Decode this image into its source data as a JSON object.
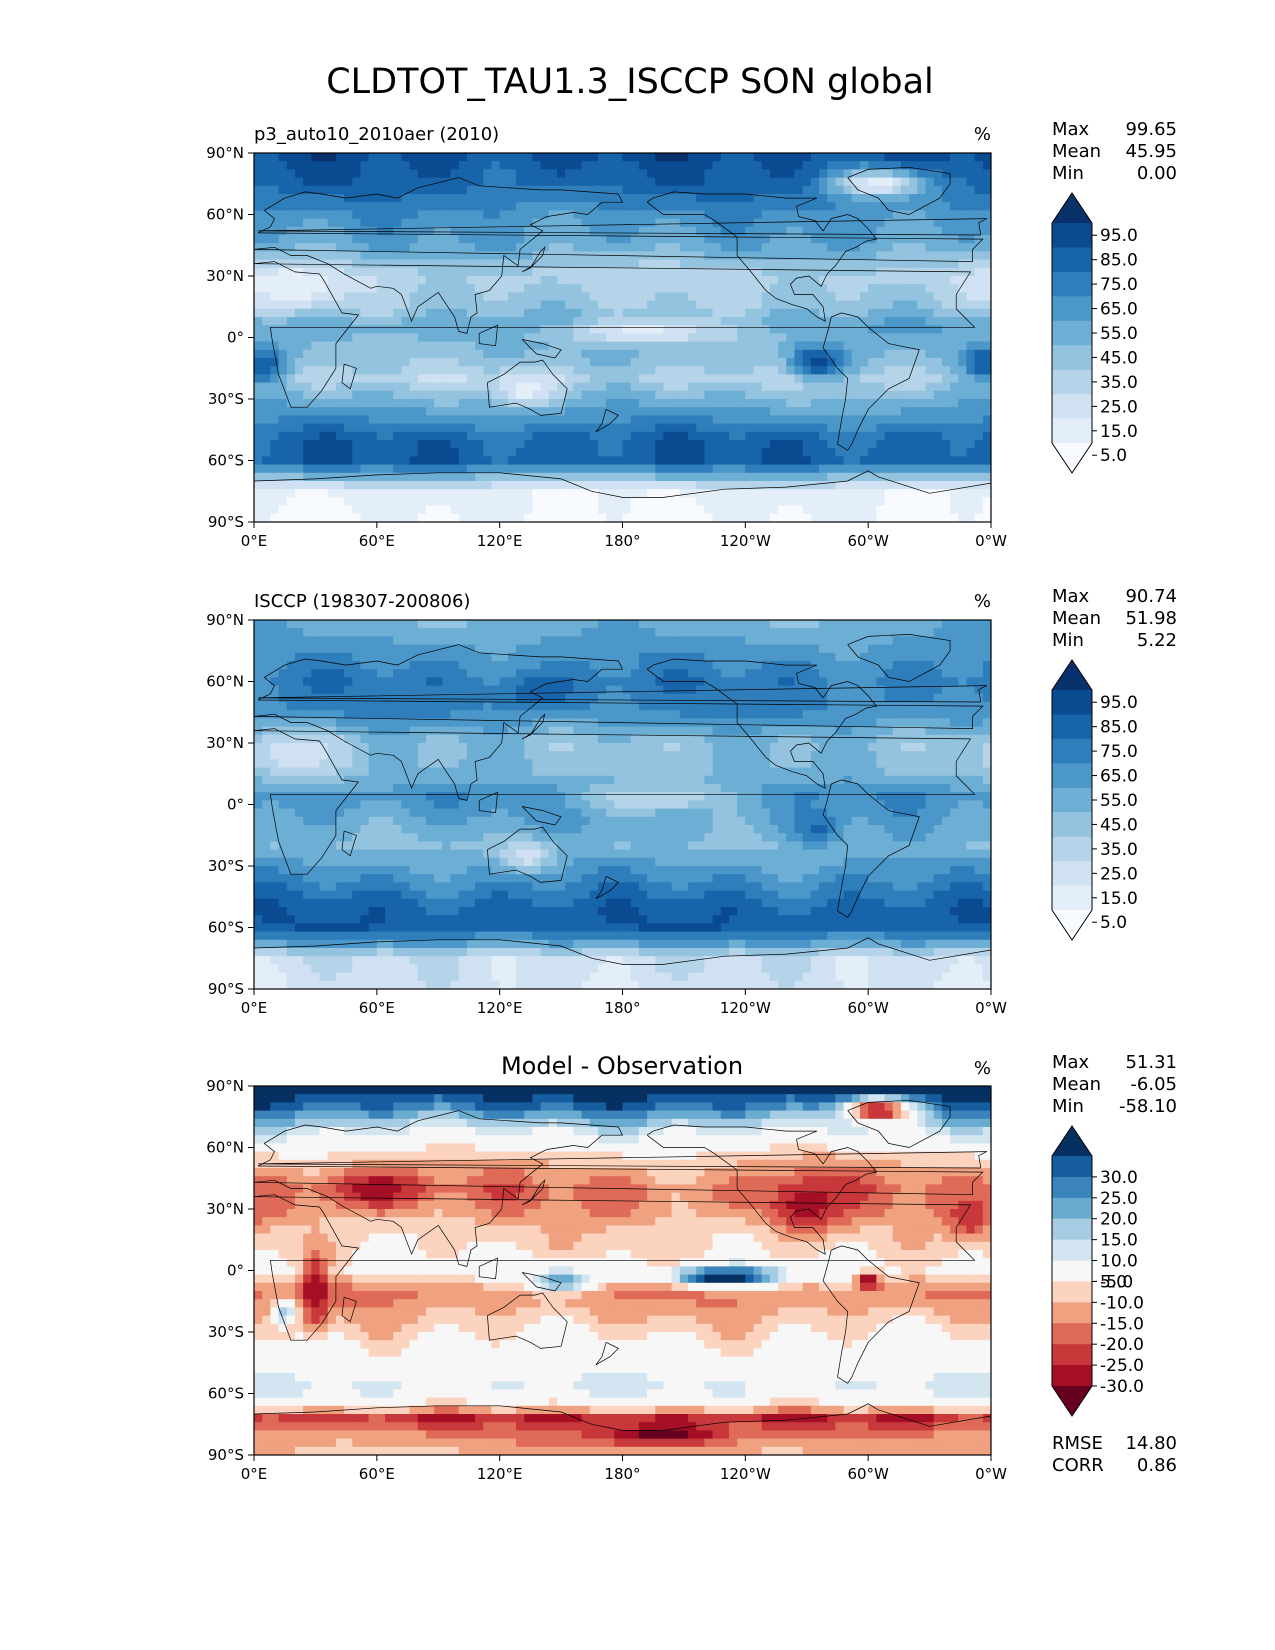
{
  "figure": {
    "title": "CLDTOT_TAU1.3_ISCCP SON global"
  },
  "chart_data": [
    {
      "type": "heatmap",
      "title": "",
      "left_title": "p3_auto10_2010aer (2010)",
      "units": "%",
      "xlabel": "",
      "ylabel": "",
      "x_ticks": [
        "0°E",
        "60°E",
        "120°E",
        "180°",
        "120°W",
        "60°W",
        "0°W"
      ],
      "y_ticks": [
        "90°N",
        "60°N",
        "30°N",
        "0°",
        "30°S",
        "60°S",
        "90°S"
      ],
      "xlim": [
        0,
        360
      ],
      "ylim": [
        -90,
        90
      ],
      "stats": [
        {
          "label": "Max",
          "value": "99.65"
        },
        {
          "label": "Mean",
          "value": "45.95"
        },
        {
          "label": "Min",
          "value": "0.00"
        }
      ],
      "colorbar": {
        "ticks": [
          "95.0",
          "85.0",
          "75.0",
          "65.0",
          "55.0",
          "45.0",
          "35.0",
          "25.0",
          "15.0",
          "5.0"
        ],
        "colors": [
          "#f7fbff",
          "#e3eef9",
          "#cfe1f2",
          "#b5d4e9",
          "#93c3df",
          "#6daed5",
          "#4b97c9",
          "#2f7ebc",
          "#1864aa",
          "#0a4a90",
          "#08306b"
        ]
      },
      "field": {
        "zonal_profile": [
          {
            "lat": 90,
            "value": 88
          },
          {
            "lat": 75,
            "value": 80
          },
          {
            "lat": 60,
            "value": 62
          },
          {
            "lat": 45,
            "value": 52
          },
          {
            "lat": 30,
            "value": 30
          },
          {
            "lat": 15,
            "value": 38
          },
          {
            "lat": 5,
            "value": 55
          },
          {
            "lat": 0,
            "value": 48
          },
          {
            "lat": -10,
            "value": 42
          },
          {
            "lat": -20,
            "value": 30
          },
          {
            "lat": -35,
            "value": 55
          },
          {
            "lat": -50,
            "value": 80
          },
          {
            "lat": -60,
            "value": 82
          },
          {
            "lat": -68,
            "value": 45
          },
          {
            "lat": -75,
            "value": 8
          },
          {
            "lat": -90,
            "value": 3
          }
        ],
        "features": [
          {
            "lon": 275,
            "lat": -12,
            "rx": 14,
            "ry": 9,
            "value": 90
          },
          {
            "lon": 5,
            "lat": -14,
            "rx": 10,
            "ry": 8,
            "value": 85
          },
          {
            "lon": 355,
            "lat": -12,
            "rx": 8,
            "ry": 8,
            "value": 85
          },
          {
            "lon": 190,
            "lat": 3,
            "rx": 45,
            "ry": 6,
            "value": 12
          },
          {
            "lon": 305,
            "lat": 75,
            "rx": 22,
            "ry": 7,
            "value": 8
          },
          {
            "lon": 20,
            "lat": 25,
            "rx": 25,
            "ry": 10,
            "value": 5
          },
          {
            "lon": 133,
            "lat": -25,
            "rx": 14,
            "ry": 8,
            "value": 8
          }
        ]
      }
    },
    {
      "type": "heatmap",
      "title": "",
      "left_title": "ISCCP (198307-200806)",
      "units": "%",
      "xlabel": "",
      "ylabel": "",
      "x_ticks": [
        "0°E",
        "60°E",
        "120°E",
        "180°",
        "120°W",
        "60°W",
        "0°W"
      ],
      "y_ticks": [
        "90°N",
        "60°N",
        "30°N",
        "0°",
        "30°S",
        "60°S",
        "90°S"
      ],
      "xlim": [
        0,
        360
      ],
      "ylim": [
        -90,
        90
      ],
      "stats": [
        {
          "label": "Max",
          "value": "90.74"
        },
        {
          "label": "Mean",
          "value": "51.98"
        },
        {
          "label": "Min",
          "value": "5.22"
        }
      ],
      "colorbar": {
        "ticks": [
          "95.0",
          "85.0",
          "75.0",
          "65.0",
          "55.0",
          "45.0",
          "35.0",
          "25.0",
          "15.0",
          "5.0"
        ],
        "colors": [
          "#f7fbff",
          "#e3eef9",
          "#cfe1f2",
          "#b5d4e9",
          "#93c3df",
          "#6daed5",
          "#4b97c9",
          "#2f7ebc",
          "#1864aa",
          "#0a4a90",
          "#08306b"
        ]
      },
      "field": {
        "zonal_profile": [
          {
            "lat": 90,
            "value": 48
          },
          {
            "lat": 75,
            "value": 60
          },
          {
            "lat": 60,
            "value": 70
          },
          {
            "lat": 45,
            "value": 65
          },
          {
            "lat": 30,
            "value": 42
          },
          {
            "lat": 15,
            "value": 45
          },
          {
            "lat": 5,
            "value": 62
          },
          {
            "lat": 0,
            "value": 60
          },
          {
            "lat": -10,
            "value": 52
          },
          {
            "lat": -20,
            "value": 45
          },
          {
            "lat": -35,
            "value": 62
          },
          {
            "lat": -50,
            "value": 80
          },
          {
            "lat": -60,
            "value": 82
          },
          {
            "lat": -68,
            "value": 55
          },
          {
            "lat": -75,
            "value": 22
          },
          {
            "lat": -90,
            "value": 18
          }
        ],
        "features": [
          {
            "lon": 195,
            "lat": 3,
            "rx": 40,
            "ry": 7,
            "value": 25
          },
          {
            "lon": 20,
            "lat": 25,
            "rx": 25,
            "ry": 10,
            "value": 18
          },
          {
            "lon": 133,
            "lat": -25,
            "rx": 14,
            "ry": 8,
            "value": 20
          },
          {
            "lon": 140,
            "lat": 55,
            "rx": 20,
            "ry": 8,
            "value": 82
          },
          {
            "lon": 275,
            "lat": -12,
            "rx": 12,
            "ry": 8,
            "value": 78
          }
        ]
      }
    },
    {
      "type": "heatmap",
      "title": "Model - Observation",
      "left_title": "",
      "units": "%",
      "xlabel": "",
      "ylabel": "",
      "x_ticks": [
        "0°E",
        "60°E",
        "120°E",
        "180°",
        "120°W",
        "60°W",
        "0°W"
      ],
      "y_ticks": [
        "90°N",
        "60°N",
        "30°N",
        "0°",
        "30°S",
        "60°S",
        "90°S"
      ],
      "xlim": [
        0,
        360
      ],
      "ylim": [
        -90,
        90
      ],
      "stats": [
        {
          "label": "Max",
          "value": "51.31"
        },
        {
          "label": "Mean",
          "value": "-6.05"
        },
        {
          "label": "Min",
          "value": "-58.10"
        }
      ],
      "extra_stats": [
        {
          "label": "RMSE",
          "value": "14.80"
        },
        {
          "label": "CORR",
          "value": "0.86"
        }
      ],
      "colorbar": {
        "ticks": [
          "30.0",
          "25.0",
          "20.0",
          "15.0",
          "10.0",
          "5.0",
          "-5.0",
          "-10.0",
          "-15.0",
          "-20.0",
          "-25.0",
          "-30.0"
        ],
        "colors": [
          "#67001f",
          "#a50f25",
          "#c8383a",
          "#de6a57",
          "#f0a17f",
          "#fbd3bf",
          "#f7f7f7",
          "#d2e5f0",
          "#a5cce3",
          "#6aacd0",
          "#3a83bb",
          "#155d9f",
          "#053061"
        ]
      },
      "field": {
        "zonal_profile": [
          {
            "lat": 90,
            "value": 35
          },
          {
            "lat": 80,
            "value": 25
          },
          {
            "lat": 68,
            "value": 6
          },
          {
            "lat": 55,
            "value": -8
          },
          {
            "lat": 40,
            "value": -16
          },
          {
            "lat": 30,
            "value": -14
          },
          {
            "lat": 20,
            "value": -8
          },
          {
            "lat": 10,
            "value": -6
          },
          {
            "lat": 0,
            "value": -2
          },
          {
            "lat": -10,
            "value": -16
          },
          {
            "lat": -22,
            "value": -10
          },
          {
            "lat": -35,
            "value": -3
          },
          {
            "lat": -50,
            "value": 2
          },
          {
            "lat": -58,
            "value": 6
          },
          {
            "lat": -66,
            "value": -4
          },
          {
            "lat": -72,
            "value": -24
          },
          {
            "lat": -80,
            "value": -14
          },
          {
            "lat": -90,
            "value": -10
          }
        ],
        "features": [
          {
            "lon": 230,
            "lat": -3,
            "rx": 28,
            "ry": 5,
            "value": 35
          },
          {
            "lon": 200,
            "lat": -80,
            "rx": 35,
            "ry": 6,
            "value": -32
          },
          {
            "lon": 270,
            "lat": 32,
            "rx": 20,
            "ry": 14,
            "value": -28
          },
          {
            "lon": 30,
            "lat": -10,
            "rx": 6,
            "ry": 18,
            "value": -30
          },
          {
            "lon": 60,
            "lat": 40,
            "rx": 25,
            "ry": 9,
            "value": -28
          },
          {
            "lon": 305,
            "lat": 78,
            "rx": 18,
            "ry": 6,
            "value": -28
          },
          {
            "lon": 350,
            "lat": 25,
            "rx": 10,
            "ry": 8,
            "value": -25
          },
          {
            "lon": 300,
            "lat": -5,
            "rx": 6,
            "ry": 5,
            "value": -30
          },
          {
            "lon": 150,
            "lat": -5,
            "rx": 15,
            "ry": 6,
            "value": 20
          },
          {
            "lon": 15,
            "lat": -20,
            "rx": 6,
            "ry": 6,
            "value": 15
          }
        ]
      }
    }
  ]
}
